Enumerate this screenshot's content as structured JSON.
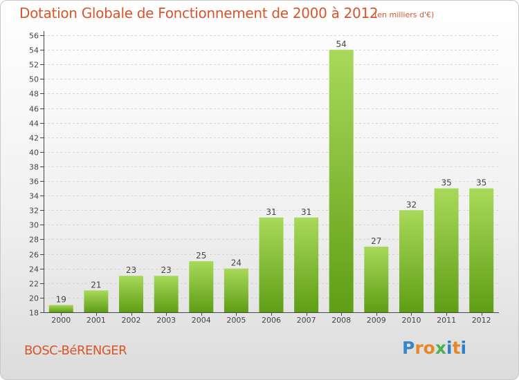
{
  "header": {
    "title": "Dotation Globale de Fonctionnement de 2000 à 2012",
    "subtitle": "(en milliers d'€)"
  },
  "footer": {
    "place_name": "BOSC-BéRENGER",
    "logo_text": "Proxiti",
    "logo_colors": [
      "#3a86c8",
      "#e8862a",
      "#e8862a",
      "#4caf50",
      "#2f7fc4",
      "#e8862a",
      "#2f7fc4"
    ]
  },
  "colors": {
    "accent": "#d9542b",
    "bar_light": "#a9d95a",
    "bar_dark": "#5f9e16",
    "axis": "#444444"
  },
  "chart_data": {
    "type": "bar",
    "categories": [
      "2000",
      "2001",
      "2002",
      "2003",
      "2004",
      "2005",
      "2006",
      "2007",
      "2008",
      "2009",
      "2010",
      "2011",
      "2012"
    ],
    "values": [
      19,
      21,
      23,
      23,
      25,
      24,
      31,
      31,
      54,
      27,
      32,
      35,
      35
    ],
    "data_labels": [
      "19",
      "21",
      "23",
      "23",
      "25",
      "24",
      "31",
      "31",
      "54",
      "27",
      "32",
      "35",
      "35"
    ],
    "y_ticks": [
      "18",
      "20",
      "22",
      "24",
      "26",
      "28",
      "30",
      "32",
      "34",
      "36",
      "38",
      "40",
      "42",
      "44",
      "46",
      "48",
      "50",
      "52",
      "54",
      "56"
    ],
    "ylim": [
      18,
      56
    ],
    "grid": true,
    "legend": "none"
  }
}
